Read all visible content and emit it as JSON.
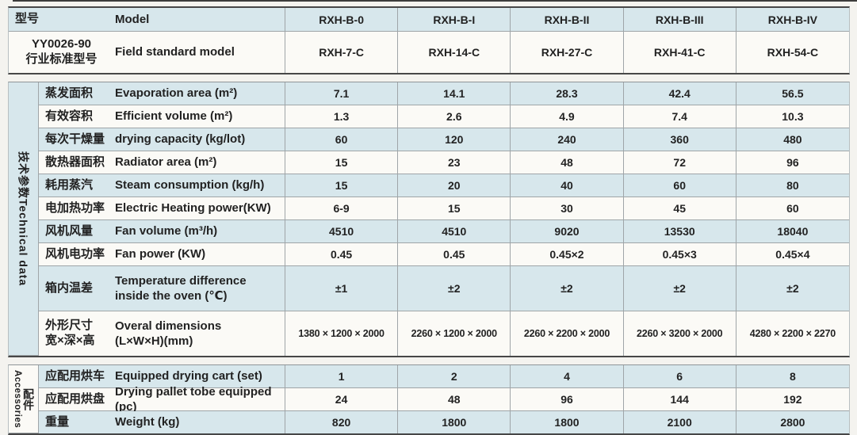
{
  "colors": {
    "row_tint_blue": "#d7e7ec",
    "row_tint_white": "#fbfaf6",
    "border_dark": "#474747",
    "border_light": "#9fa5a8",
    "text": "#222222",
    "page_background": "#f4f3ef"
  },
  "header": {
    "rows": [
      {
        "zh": "型号",
        "en": "Model",
        "values": [
          "RXH-B-0",
          "RXH-B-I",
          "RXH-B-II",
          "RXH-B-III",
          "RXH-B-IV"
        ],
        "tint": "blue"
      },
      {
        "zh": "YY0026-90\n行业标准型号",
        "en": "Field standard model",
        "values": [
          "RXH-7-C",
          "RXH-14-C",
          "RXH-27-C",
          "RXH-41-C",
          "RXH-54-C"
        ],
        "tint": "white",
        "center": true
      }
    ]
  },
  "technical": {
    "side_label": "技术参数Technical data",
    "rows": [
      {
        "zh": "蒸发面积",
        "en": "Evaporation area (m²)",
        "values": [
          "7.1",
          "14.1",
          "28.3",
          "42.4",
          "56.5"
        ],
        "tint": "blue"
      },
      {
        "zh": "有效容积",
        "en": "Efficient volume (m²)",
        "values": [
          "1.3",
          "2.6",
          "4.9",
          "7.4",
          "10.3"
        ],
        "tint": "white"
      },
      {
        "zh": "每次干燥量",
        "en": "drying capacity (kg/lot)",
        "values": [
          "60",
          "120",
          "240",
          "360",
          "480"
        ],
        "tint": "blue"
      },
      {
        "zh": "散热器面积",
        "en": "Radiator area (m²)",
        "values": [
          "15",
          "23",
          "48",
          "72",
          "96"
        ],
        "tint": "white"
      },
      {
        "zh": "耗用蒸汽",
        "en": "Steam consumption (kg/h)",
        "values": [
          "15",
          "20",
          "40",
          "60",
          "80"
        ],
        "tint": "blue"
      },
      {
        "zh": "电加热功率",
        "en": "Electric Heating power(KW)",
        "values": [
          "6-9",
          "15",
          "30",
          "45",
          "60"
        ],
        "tint": "white"
      },
      {
        "zh": "风机风量",
        "en": "Fan volume (m³/h)",
        "values": [
          "4510",
          "4510",
          "9020",
          "13530",
          "18040"
        ],
        "tint": "blue"
      },
      {
        "zh": "风机电功率",
        "en": "Fan power (KW)",
        "values": [
          "0.45",
          "0.45",
          "0.45×2",
          "0.45×3",
          "0.45×4"
        ],
        "tint": "white"
      },
      {
        "zh": "箱内温差",
        "en": "Temperature difference\ninside the oven (℃)",
        "values": [
          "±1",
          "±2",
          "±2",
          "±2",
          "±2"
        ],
        "tint": "blue"
      },
      {
        "zh": "外形尺寸\n宽×深×高",
        "en": "Overal dimensions\n(L×W×H)(mm)",
        "values": [
          "1380 × 1200 × 2000",
          "2260 × 1200 × 2000",
          "2260 × 2200 × 2000",
          "2260 × 3200 × 2000",
          "4280 × 2200 × 2270"
        ],
        "tint": "white",
        "small": true
      }
    ]
  },
  "accessories": {
    "side_label_en": "Accessories",
    "side_label_zh": "配件",
    "rows": [
      {
        "zh": "应配用烘车",
        "en": "Equipped drying cart (set)",
        "values": [
          "1",
          "2",
          "4",
          "6",
          "8"
        ],
        "tint": "blue"
      },
      {
        "zh": "应配用烘盘",
        "en": "Drying pallet tobe equipped (pc)",
        "values": [
          "24",
          "48",
          "96",
          "144",
          "192"
        ],
        "tint": "white"
      },
      {
        "zh": "重量",
        "en": "Weight (kg)",
        "values": [
          "820",
          "1800",
          "1800",
          "2100",
          "2800"
        ],
        "tint": "blue"
      }
    ]
  }
}
